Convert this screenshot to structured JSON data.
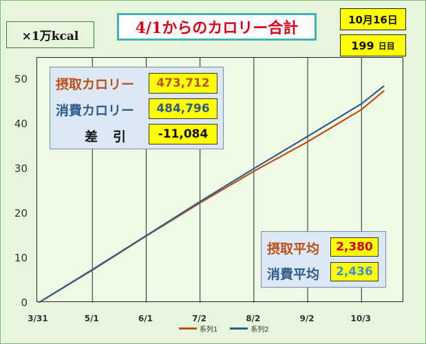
{
  "header": {
    "unit": "×1万kcal",
    "title": "4/1からのカロリー合計",
    "date": "10月16日",
    "days_value": "199",
    "days_unit": "日目"
  },
  "summary": {
    "intake_label": "摂取カロリー",
    "intake_value": "473,712",
    "burn_label": "消費カロリー",
    "burn_value": "484,796",
    "diff_label": "差引",
    "diff_value": "-11,084"
  },
  "averages": {
    "intake_label": "摂取平均",
    "intake_value": "2,380",
    "burn_label": "消費平均",
    "burn_value": "2,436"
  },
  "colors": {
    "intake": "#c04f14",
    "burn": "#2e5c8a",
    "grid": "#222222"
  },
  "chart_data": {
    "type": "line",
    "title": "4/1からのカロリー合計",
    "xlabel": "",
    "ylabel": "×1万kcal",
    "x_ticks": [
      "3/31",
      "5/1",
      "6/1",
      "7/2",
      "8/2",
      "9/2",
      "10/3"
    ],
    "x_tick_days": [
      0,
      31,
      62,
      93,
      124,
      155,
      186
    ],
    "xlim": [
      0,
      207
    ],
    "ylim": [
      0,
      55
    ],
    "y_ticks": [
      0,
      10,
      20,
      30,
      40,
      50
    ],
    "grid": "vertical",
    "legend": "bottom",
    "series": [
      {
        "name": "系列1",
        "color": "#c04f14",
        "points": [
          [
            0,
            0
          ],
          [
            31,
            7.3
          ],
          [
            62,
            14.9
          ],
          [
            93,
            22.3
          ],
          [
            124,
            29.4
          ],
          [
            155,
            36.0
          ],
          [
            186,
            43.2
          ],
          [
            199,
            47.4
          ]
        ]
      },
      {
        "name": "系列2",
        "color": "#2e5c8a",
        "points": [
          [
            0,
            0
          ],
          [
            31,
            7.4
          ],
          [
            62,
            15.0
          ],
          [
            93,
            22.6
          ],
          [
            124,
            30.0
          ],
          [
            155,
            37.2
          ],
          [
            186,
            44.5
          ],
          [
            199,
            48.5
          ]
        ]
      }
    ]
  }
}
